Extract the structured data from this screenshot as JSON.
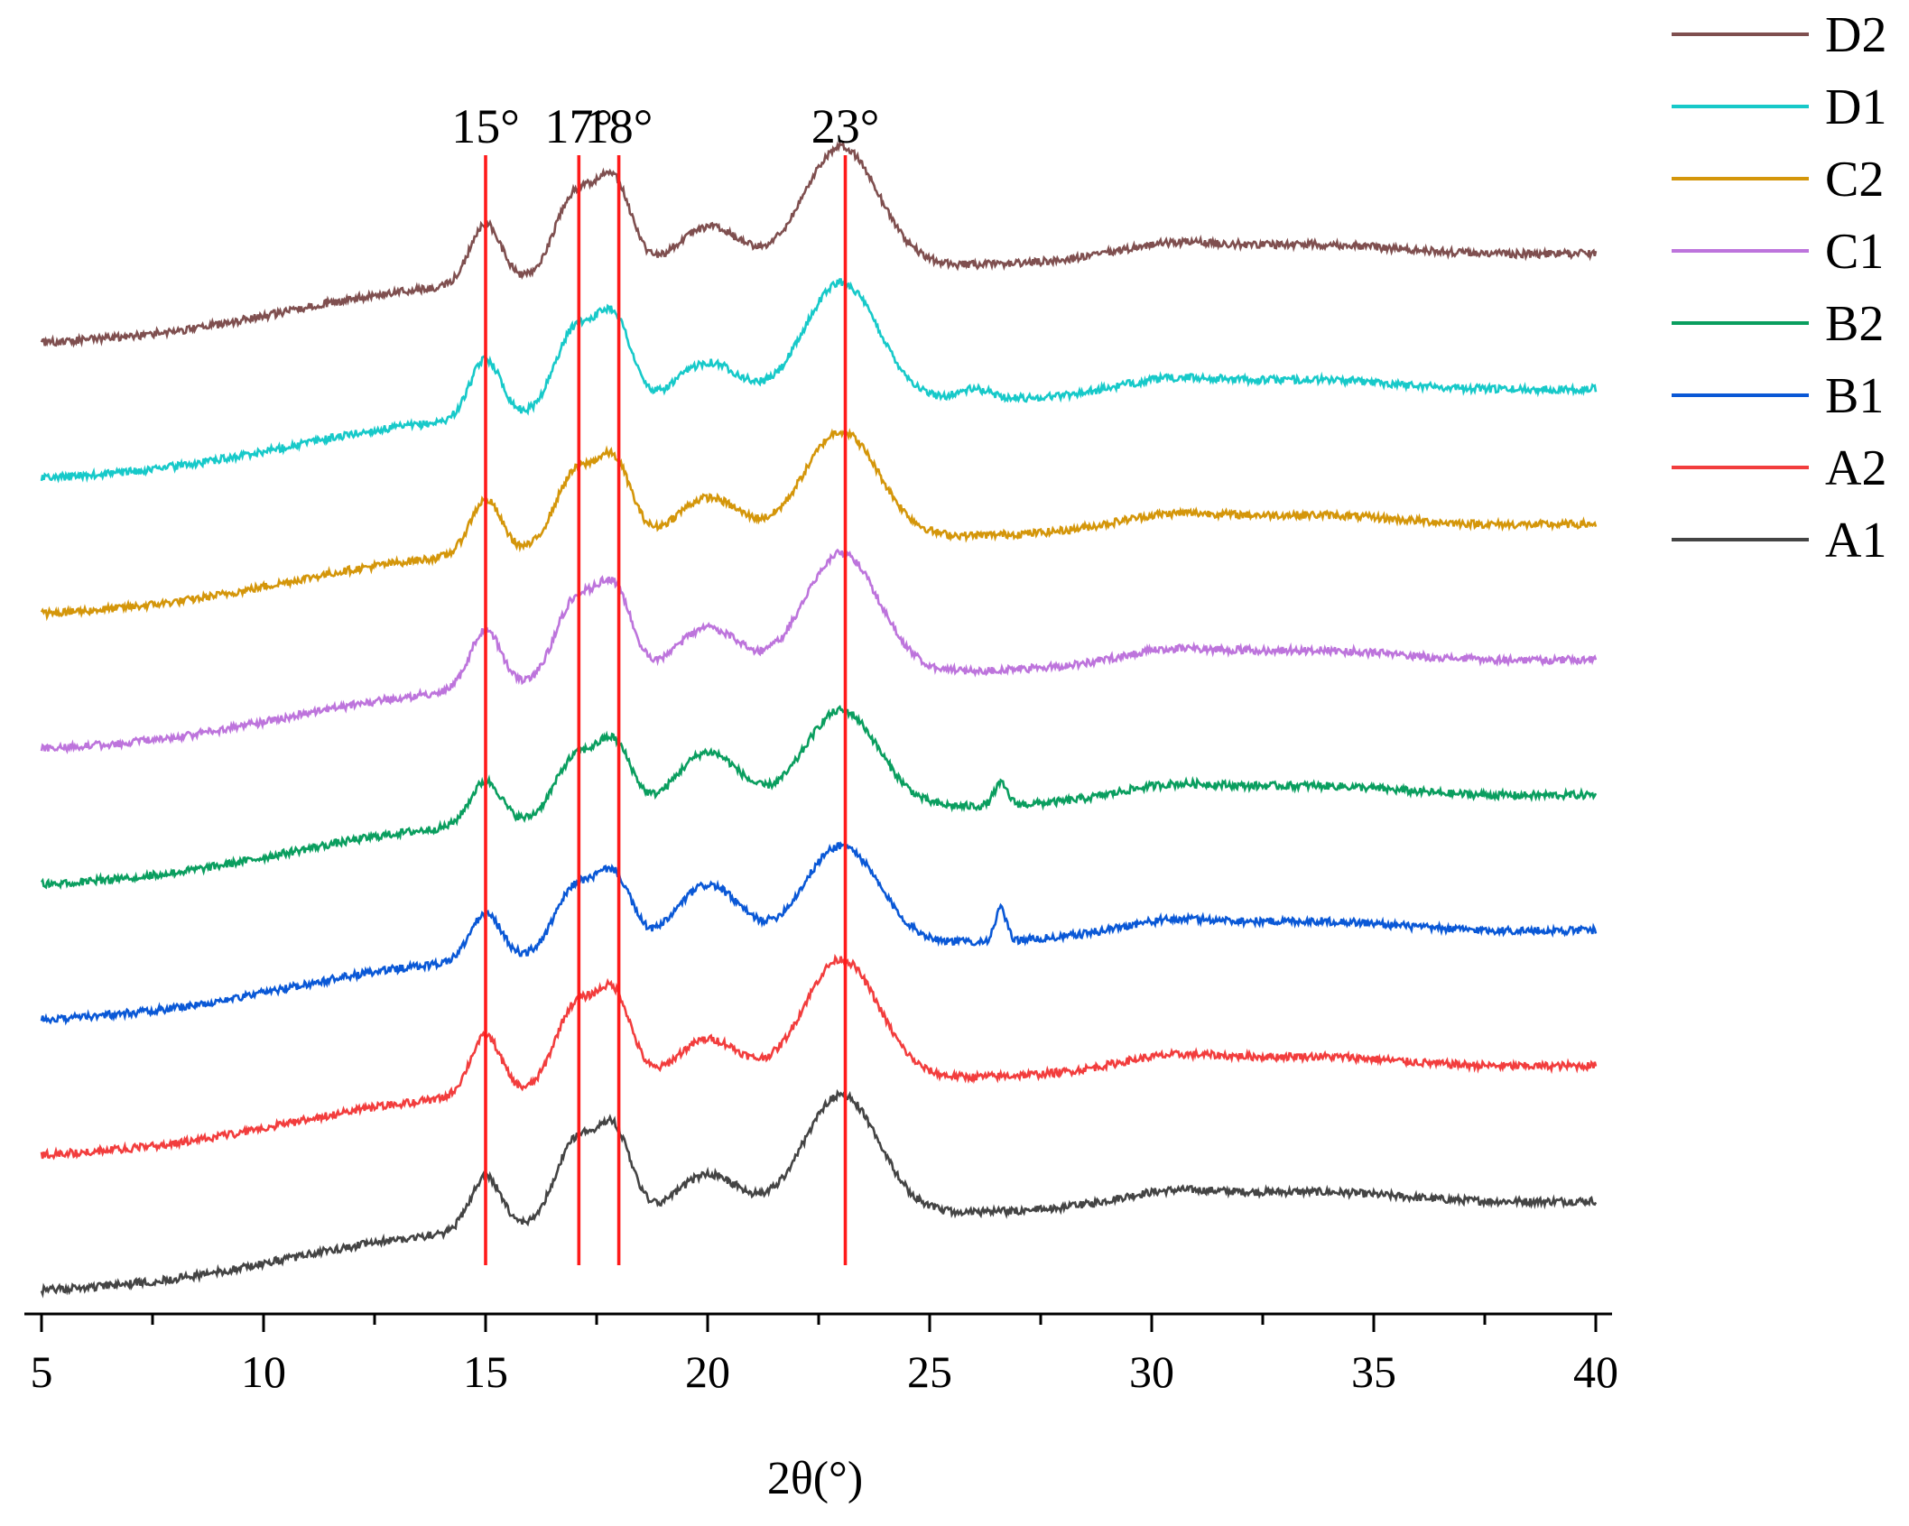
{
  "chart_data": {
    "type": "line",
    "title": "",
    "xlabel": "2θ(°)",
    "ylabel": "",
    "xlim": [
      5,
      40
    ],
    "xticks": [
      5,
      10,
      15,
      20,
      25,
      30,
      35,
      40
    ],
    "xtick_labels": [
      "5",
      "10",
      "15",
      "20",
      "25",
      "30",
      "35",
      "40"
    ],
    "grid": false,
    "legend_position": "top-right",
    "reference_lines": [
      {
        "x": 15,
        "label": "15°"
      },
      {
        "x": 17.1,
        "label": "17°"
      },
      {
        "x": 18,
        "label": "18°"
      },
      {
        "x": 23.1,
        "label": "23°"
      }
    ],
    "series": [
      {
        "name": "D2",
        "color": "#7f4f4f",
        "offset": 7,
        "seed": 8,
        "peaks": [
          [
            15.0,
            0.22,
            0.35
          ],
          [
            17.0,
            0.3,
            0.45
          ],
          [
            17.9,
            0.33,
            0.4
          ],
          [
            20.0,
            0.17,
            0.75
          ],
          [
            23.0,
            0.45,
            0.85
          ],
          [
            30.3,
            0.05,
            1.2
          ],
          [
            33.5,
            0.05,
            2.0
          ]
        ]
      },
      {
        "name": "D1",
        "color": "#17c9c9",
        "offset": 6,
        "seed": 7,
        "peaks": [
          [
            15.0,
            0.22,
            0.35
          ],
          [
            17.0,
            0.3,
            0.45
          ],
          [
            17.9,
            0.33,
            0.4
          ],
          [
            20.0,
            0.17,
            0.75
          ],
          [
            23.0,
            0.45,
            0.85
          ],
          [
            26.0,
            0.04,
            0.4
          ],
          [
            30.3,
            0.05,
            1.2
          ],
          [
            33.5,
            0.05,
            2.0
          ]
        ]
      },
      {
        "name": "C2",
        "color": "#d4960a",
        "offset": 5,
        "seed": 6,
        "peaks": [
          [
            15.0,
            0.2,
            0.35
          ],
          [
            17.0,
            0.27,
            0.45
          ],
          [
            17.9,
            0.3,
            0.4
          ],
          [
            20.0,
            0.17,
            0.75
          ],
          [
            23.0,
            0.4,
            0.85
          ],
          [
            30.3,
            0.05,
            1.2
          ],
          [
            33.5,
            0.05,
            2.0
          ]
        ]
      },
      {
        "name": "C1",
        "color": "#bd74dc",
        "offset": 4,
        "seed": 5,
        "peaks": [
          [
            15.0,
            0.22,
            0.35
          ],
          [
            17.0,
            0.3,
            0.45
          ],
          [
            17.9,
            0.33,
            0.4
          ],
          [
            20.0,
            0.19,
            0.75
          ],
          [
            23.0,
            0.45,
            0.85
          ],
          [
            30.3,
            0.05,
            1.2
          ],
          [
            33.5,
            0.05,
            2.0
          ]
        ]
      },
      {
        "name": "B2",
        "color": "#0a9e5f",
        "offset": 3,
        "seed": 4,
        "peaks": [
          [
            15.0,
            0.16,
            0.35
          ],
          [
            17.0,
            0.22,
            0.45
          ],
          [
            17.9,
            0.26,
            0.4
          ],
          [
            20.0,
            0.23,
            0.75
          ],
          [
            23.0,
            0.37,
            0.85
          ],
          [
            26.6,
            0.08,
            0.15
          ],
          [
            30.3,
            0.05,
            1.2
          ],
          [
            33.5,
            0.05,
            2.0
          ]
        ]
      },
      {
        "name": "B1",
        "color": "#0a58d6",
        "offset": 2,
        "seed": 3,
        "peaks": [
          [
            15.0,
            0.17,
            0.35
          ],
          [
            17.0,
            0.24,
            0.45
          ],
          [
            17.9,
            0.27,
            0.4
          ],
          [
            20.0,
            0.24,
            0.75
          ],
          [
            23.0,
            0.37,
            0.85
          ],
          [
            26.6,
            0.12,
            0.12
          ],
          [
            30.3,
            0.05,
            1.2
          ],
          [
            33.5,
            0.05,
            2.0
          ]
        ]
      },
      {
        "name": "A2",
        "color": "#f23d3d",
        "offset": 1,
        "seed": 2,
        "peaks": [
          [
            15.0,
            0.22,
            0.35
          ],
          [
            17.0,
            0.3,
            0.45
          ],
          [
            17.9,
            0.33,
            0.4
          ],
          [
            20.0,
            0.17,
            0.75
          ],
          [
            23.0,
            0.45,
            0.85
          ],
          [
            30.3,
            0.05,
            1.2
          ],
          [
            33.5,
            0.05,
            2.0
          ]
        ]
      },
      {
        "name": "A1",
        "color": "#444444",
        "offset": 0,
        "seed": 1,
        "peaks": [
          [
            15.0,
            0.2,
            0.35
          ],
          [
            17.0,
            0.3,
            0.45
          ],
          [
            17.9,
            0.33,
            0.4
          ],
          [
            20.0,
            0.17,
            0.75
          ],
          [
            23.0,
            0.45,
            0.85
          ],
          [
            30.3,
            0.05,
            1.2
          ],
          [
            33.5,
            0.05,
            2.0
          ]
        ]
      }
    ]
  }
}
